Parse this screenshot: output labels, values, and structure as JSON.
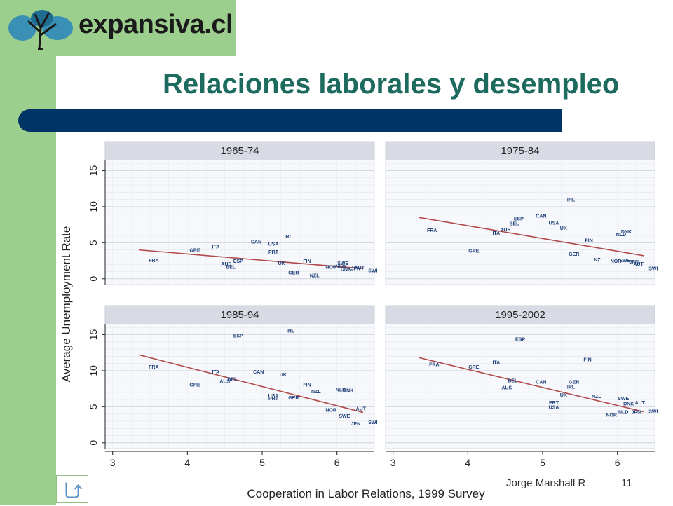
{
  "logo": {
    "text": "expansiva.cl",
    "icon": "tree-logo-icon",
    "colors": {
      "leaf": "#3a8fb5",
      "leaf_alt": "#1f6e92",
      "trunk": "#1a1a1a"
    }
  },
  "slide": {
    "title": "Relaciones laborales y desempleo",
    "colors": {
      "title": "#1d6a5e",
      "bar": "#003366",
      "band": "#9ccf8d"
    }
  },
  "footer": {
    "author": "Jorge Marshall R.",
    "page": "11",
    "home_icon": "return-arrow-icon"
  },
  "chart_data": {
    "type": "scatter",
    "xlabel": "Cooperation in Labor Relations, 1999 Survey",
    "ylabel": "Average Unemployment Rate",
    "xlim": [
      2.9,
      6.5
    ],
    "ylim": [
      -0.8,
      16.5
    ],
    "xticks": [
      3,
      4,
      5,
      6
    ],
    "yticks": [
      0,
      5,
      10,
      15
    ],
    "grid": true,
    "colors": {
      "points": "#1d3f7a",
      "fit_line": "#b04a4a",
      "strip": "#d9dbe4",
      "plot_bg": "#f7f8fb"
    },
    "panels": [
      {
        "title": "1965-74",
        "fit": [
          [
            3.35,
            4.0
          ],
          [
            6.35,
            1.4
          ]
        ],
        "points": [
          {
            "label": "FRA",
            "x": 3.55,
            "y": 2.3
          },
          {
            "label": "GRE",
            "x": 4.1,
            "y": 3.7
          },
          {
            "label": "ITA",
            "x": 4.38,
            "y": 4.2
          },
          {
            "label": "AUS",
            "x": 4.52,
            "y": 1.8
          },
          {
            "label": "BEL",
            "x": 4.58,
            "y": 1.4
          },
          {
            "label": "ESP",
            "x": 4.68,
            "y": 2.2
          },
          {
            "label": "CAN",
            "x": 4.92,
            "y": 4.9
          },
          {
            "label": "USA",
            "x": 5.15,
            "y": 4.6
          },
          {
            "label": "PRT",
            "x": 5.15,
            "y": 3.5
          },
          {
            "label": "IRL",
            "x": 5.35,
            "y": 5.6
          },
          {
            "label": "UK",
            "x": 5.26,
            "y": 1.9
          },
          {
            "label": "FIN",
            "x": 5.6,
            "y": 2.2
          },
          {
            "label": "GER",
            "x": 5.42,
            "y": 0.6
          },
          {
            "label": "NZL",
            "x": 5.7,
            "y": 0.2
          },
          {
            "label": "NOR",
            "x": 5.92,
            "y": 1.4
          },
          {
            "label": "SWE",
            "x": 6.08,
            "y": 1.9
          },
          {
            "label": "NLD",
            "x": 6.05,
            "y": 1.5
          },
          {
            "label": "DNK",
            "x": 6.12,
            "y": 1.1
          },
          {
            "label": "JPN",
            "x": 6.25,
            "y": 1.2
          },
          {
            "label": "AUT",
            "x": 6.3,
            "y": 1.3
          },
          {
            "label": "SWI",
            "x": 6.48,
            "y": 0.9
          }
        ]
      },
      {
        "title": "1975-84",
        "fit": [
          [
            3.35,
            8.5
          ],
          [
            6.35,
            3.2
          ]
        ],
        "points": [
          {
            "label": "FRA",
            "x": 3.52,
            "y": 6.5
          },
          {
            "label": "GRE",
            "x": 4.08,
            "y": 3.6
          },
          {
            "label": "ITA",
            "x": 4.38,
            "y": 6.1
          },
          {
            "label": "AUS",
            "x": 4.5,
            "y": 6.6
          },
          {
            "label": "BEL",
            "x": 4.62,
            "y": 7.4
          },
          {
            "label": "ESP",
            "x": 4.68,
            "y": 8.1
          },
          {
            "label": "CAN",
            "x": 4.98,
            "y": 8.5
          },
          {
            "label": "USA",
            "x": 5.15,
            "y": 7.5
          },
          {
            "label": "UK",
            "x": 5.28,
            "y": 6.8
          },
          {
            "label": "IRL",
            "x": 5.38,
            "y": 10.7
          },
          {
            "label": "FIN",
            "x": 5.62,
            "y": 5.1
          },
          {
            "label": "GER",
            "x": 5.42,
            "y": 3.2
          },
          {
            "label": "NZL",
            "x": 5.75,
            "y": 2.4
          },
          {
            "label": "NOR",
            "x": 5.98,
            "y": 2.2
          },
          {
            "label": "SWE",
            "x": 6.1,
            "y": 2.3
          },
          {
            "label": "NLD",
            "x": 6.05,
            "y": 5.9
          },
          {
            "label": "DNK",
            "x": 6.12,
            "y": 6.3
          },
          {
            "label": "JPN",
            "x": 6.22,
            "y": 2.1
          },
          {
            "label": "AUT",
            "x": 6.28,
            "y": 1.8
          },
          {
            "label": "SWI",
            "x": 6.48,
            "y": 1.2
          }
        ]
      },
      {
        "title": "1985-94",
        "fit": [
          [
            3.35,
            12.2
          ],
          [
            6.35,
            4.2
          ]
        ],
        "points": [
          {
            "label": "FRA",
            "x": 3.55,
            "y": 10.3
          },
          {
            "label": "GRE",
            "x": 4.1,
            "y": 7.8
          },
          {
            "label": "ITA",
            "x": 4.38,
            "y": 9.6
          },
          {
            "label": "AUS",
            "x": 4.5,
            "y": 8.3
          },
          {
            "label": "BEL",
            "x": 4.6,
            "y": 8.6
          },
          {
            "label": "ESP",
            "x": 4.68,
            "y": 14.6
          },
          {
            "label": "CAN",
            "x": 4.95,
            "y": 9.6
          },
          {
            "label": "UK",
            "x": 5.28,
            "y": 9.2
          },
          {
            "label": "USA",
            "x": 5.15,
            "y": 6.3
          },
          {
            "label": "PRT",
            "x": 5.15,
            "y": 5.9
          },
          {
            "label": "IRL",
            "x": 5.38,
            "y": 15.3
          },
          {
            "label": "FIN",
            "x": 5.6,
            "y": 7.8
          },
          {
            "label": "GER",
            "x": 5.42,
            "y": 6.0
          },
          {
            "label": "NZL",
            "x": 5.72,
            "y": 6.9
          },
          {
            "label": "NLD",
            "x": 6.05,
            "y": 7.1
          },
          {
            "label": "DNK",
            "x": 6.15,
            "y": 7.0
          },
          {
            "label": "NOR",
            "x": 5.92,
            "y": 4.3
          },
          {
            "label": "SWE",
            "x": 6.1,
            "y": 3.5
          },
          {
            "label": "AUT",
            "x": 6.32,
            "y": 4.5
          },
          {
            "label": "JPN",
            "x": 6.25,
            "y": 2.4
          },
          {
            "label": "SWI",
            "x": 6.48,
            "y": 2.6
          }
        ]
      },
      {
        "title": "1995-2002",
        "fit": [
          [
            3.35,
            11.8
          ],
          [
            6.35,
            4.3
          ]
        ],
        "points": [
          {
            "label": "FRA",
            "x": 3.55,
            "y": 10.6
          },
          {
            "label": "GRE",
            "x": 4.08,
            "y": 10.3
          },
          {
            "label": "ITA",
            "x": 4.38,
            "y": 10.9
          },
          {
            "label": "ESP",
            "x": 4.7,
            "y": 14.1
          },
          {
            "label": "BEL",
            "x": 4.6,
            "y": 8.4
          },
          {
            "label": "AUS",
            "x": 4.52,
            "y": 7.4
          },
          {
            "label": "CAN",
            "x": 4.98,
            "y": 8.2
          },
          {
            "label": "UK",
            "x": 5.28,
            "y": 6.4
          },
          {
            "label": "PRT",
            "x": 5.15,
            "y": 5.3
          },
          {
            "label": "USA",
            "x": 5.15,
            "y": 4.7
          },
          {
            "label": "FIN",
            "x": 5.6,
            "y": 11.3
          },
          {
            "label": "GER",
            "x": 5.42,
            "y": 8.2
          },
          {
            "label": "IRL",
            "x": 5.38,
            "y": 7.5
          },
          {
            "label": "NZL",
            "x": 5.72,
            "y": 6.2
          },
          {
            "label": "SWE",
            "x": 6.08,
            "y": 5.9
          },
          {
            "label": "DNK",
            "x": 6.15,
            "y": 5.2
          },
          {
            "label": "AUT",
            "x": 6.3,
            "y": 5.3
          },
          {
            "label": "NOR",
            "x": 5.92,
            "y": 3.6
          },
          {
            "label": "NLD",
            "x": 6.08,
            "y": 4.0
          },
          {
            "label": "JPN",
            "x": 6.25,
            "y": 4.0
          },
          {
            "label": "SWI",
            "x": 6.48,
            "y": 4.1
          }
        ]
      }
    ]
  }
}
